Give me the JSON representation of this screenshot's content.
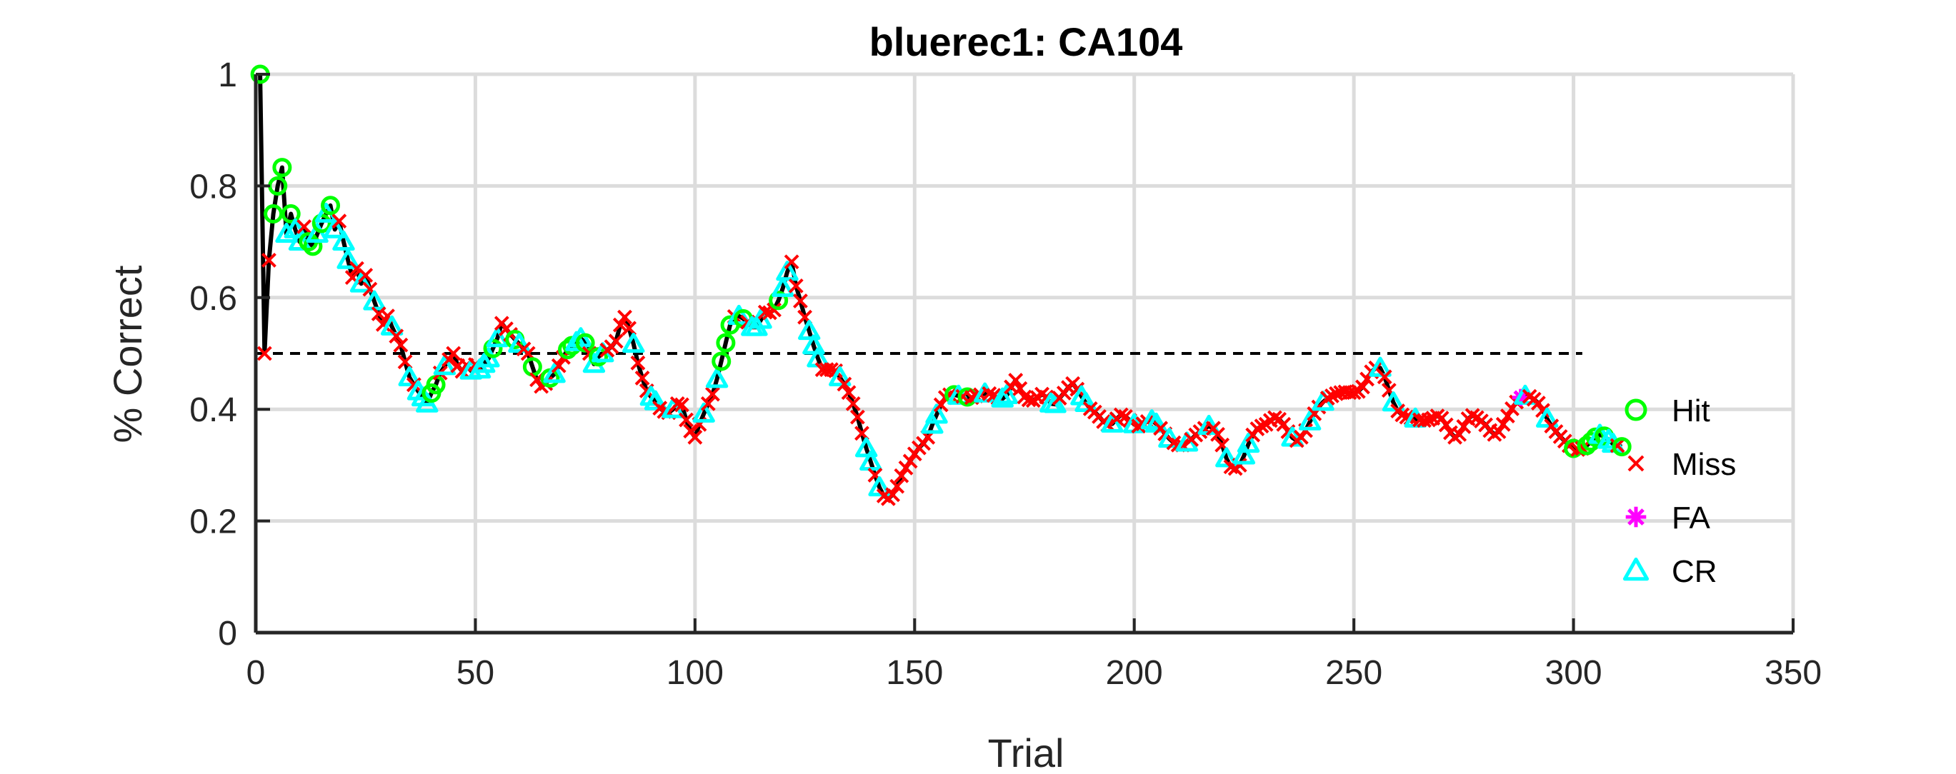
{
  "chart_data": {
    "type": "line",
    "title": "bluerec1: CA104",
    "xlabel": "Trial",
    "ylabel": "% Correct",
    "xlim": [
      0,
      350
    ],
    "ylim": [
      0,
      1
    ],
    "xticks": [
      0,
      50,
      100,
      150,
      200,
      250,
      300,
      350
    ],
    "yticks": [
      0,
      0.2,
      0.4,
      0.6,
      0.8,
      1
    ],
    "xtick_labels": [
      "0",
      "50",
      "100",
      "150",
      "200",
      "250",
      "300",
      "350"
    ],
    "ytick_labels": [
      "0",
      "0.2",
      "0.4",
      "0.6",
      "0.8",
      "1"
    ],
    "grid": true,
    "legend_position": "right",
    "chance_line": {
      "y": 0.5,
      "x_range": [
        0,
        302
      ],
      "style": "dashed"
    },
    "line_color": "#000000",
    "colors": {
      "Hit": "#00ff00",
      "Miss": "#ff0000",
      "FA": "#ff00ff",
      "CR": "#00ffff"
    },
    "legend": [
      {
        "name": "Hit",
        "marker": "circle"
      },
      {
        "name": "Miss",
        "marker": "x"
      },
      {
        "name": "FA",
        "marker": "star"
      },
      {
        "name": "CR",
        "marker": "triangle"
      }
    ],
    "outcomes": "HMMHHHCHCCMHHCHCHCMCCMMCMMCMMMCMMMCMCCCHHMCMMMMMCMCCCHCMMMHCMMHMMMHCMMHHCCHMCHCMMMMMMCMMMCCMMMCMMMMMMCMMCHHHMCHMCCCMMMHCCMMMMCCCMMMMCMMMMMCCMCMMMMMMMMMMMCCMMMHCMHMMMCMMMCCMMMMMMMMMCCMMMMMCCMMMMMCMMMMCMMMCCMMCMMMCMMMMCMMMCMMMCCMMMMMMMMMCMMMCMMCMMMMMMMMMMMMCMMCMMMMCMMMMMMMMMMMMMMMMMMMMMMMFCMMMMCMMMMM",
    "series_note": "",
    "y": [
      1.0,
      0.5,
      0.667,
      0.75,
      0.8,
      0.833,
      0.714,
      0.75,
      0.722,
      0.7,
      0.727,
      0.7,
      0.692,
      0.714,
      0.733,
      0.75,
      0.765,
      0.722,
      0.737,
      0.7,
      0.667,
      0.636,
      0.652,
      0.625,
      0.64,
      0.615,
      0.593,
      0.571,
      0.552,
      0.567,
      0.548,
      0.531,
      0.515,
      0.485,
      0.457,
      0.444,
      0.432,
      0.421,
      0.41,
      0.429,
      0.444,
      0.465,
      0.477,
      0.489,
      0.5,
      0.478,
      0.468,
      0.479,
      0.469,
      0.48,
      0.471,
      0.481,
      0.491,
      0.509,
      0.527,
      0.554,
      0.544,
      0.534,
      0.525,
      0.517,
      0.508,
      0.5,
      0.476,
      0.453,
      0.441,
      0.446,
      0.456,
      0.463,
      0.478,
      0.493,
      0.507,
      0.514,
      0.52,
      0.527,
      0.519,
      0.5,
      0.481,
      0.494,
      0.5,
      0.506,
      0.512,
      0.522,
      0.551,
      0.565,
      0.545,
      0.517,
      0.483,
      0.456,
      0.433,
      0.422,
      0.414,
      0.402,
      0.396,
      0.394,
      0.4,
      0.41,
      0.408,
      0.381,
      0.361,
      0.35,
      0.373,
      0.392,
      0.41,
      0.427,
      0.454,
      0.486,
      0.519,
      0.551,
      0.566,
      0.567,
      0.562,
      0.556,
      0.547,
      0.547,
      0.56,
      0.574,
      0.573,
      0.578,
      0.595,
      0.617,
      0.646,
      0.664,
      0.621,
      0.594,
      0.565,
      0.54,
      0.514,
      0.491,
      0.471,
      0.471,
      0.471,
      0.469,
      0.457,
      0.445,
      0.43,
      0.41,
      0.386,
      0.357,
      0.33,
      0.306,
      0.282,
      0.26,
      0.245,
      0.24,
      0.247,
      0.262,
      0.281,
      0.295,
      0.307,
      0.32,
      0.331,
      0.339,
      0.35,
      0.372,
      0.39,
      0.408,
      0.421,
      0.426,
      0.426,
      0.424,
      0.423,
      0.422,
      0.421,
      0.424,
      0.426,
      0.428,
      0.428,
      0.425,
      0.42,
      0.419,
      0.425,
      0.44,
      0.452,
      0.437,
      0.422,
      0.417,
      0.416,
      0.421,
      0.427,
      0.422,
      0.41,
      0.409,
      0.42,
      0.429,
      0.439,
      0.446,
      0.436,
      0.423,
      0.411,
      0.401,
      0.395,
      0.387,
      0.378,
      0.372,
      0.374,
      0.383,
      0.39,
      0.387,
      0.38,
      0.373,
      0.37,
      0.374,
      0.378,
      0.38,
      0.374,
      0.366,
      0.356,
      0.347,
      0.34,
      0.336,
      0.336,
      0.34,
      0.346,
      0.354,
      0.36,
      0.366,
      0.37,
      0.366,
      0.355,
      0.336,
      0.312,
      0.297,
      0.294,
      0.3,
      0.317,
      0.338,
      0.354,
      0.365,
      0.37,
      0.373,
      0.38,
      0.385,
      0.382,
      0.373,
      0.36,
      0.349,
      0.344,
      0.35,
      0.362,
      0.378,
      0.392,
      0.404,
      0.413,
      0.42,
      0.424,
      0.428,
      0.43,
      0.431,
      0.43,
      0.43,
      0.432,
      0.44,
      0.454,
      0.467,
      0.474,
      0.474,
      0.458,
      0.434,
      0.412,
      0.397,
      0.39,
      0.386,
      0.384,
      0.383,
      0.381,
      0.38,
      0.381,
      0.384,
      0.388,
      0.384,
      0.372,
      0.358,
      0.35,
      0.355,
      0.369,
      0.383,
      0.389,
      0.385,
      0.379,
      0.372,
      0.362,
      0.355,
      0.36,
      0.373,
      0.388,
      0.401,
      0.413,
      0.421,
      0.424,
      0.423,
      0.418,
      0.411,
      0.398,
      0.383,
      0.37,
      0.36,
      0.351,
      0.343,
      0.335,
      0.33,
      0.328,
      0.33,
      0.335,
      0.342,
      0.35,
      0.354,
      0.352,
      0.345,
      0.338,
      0.335,
      0.333
    ]
  }
}
